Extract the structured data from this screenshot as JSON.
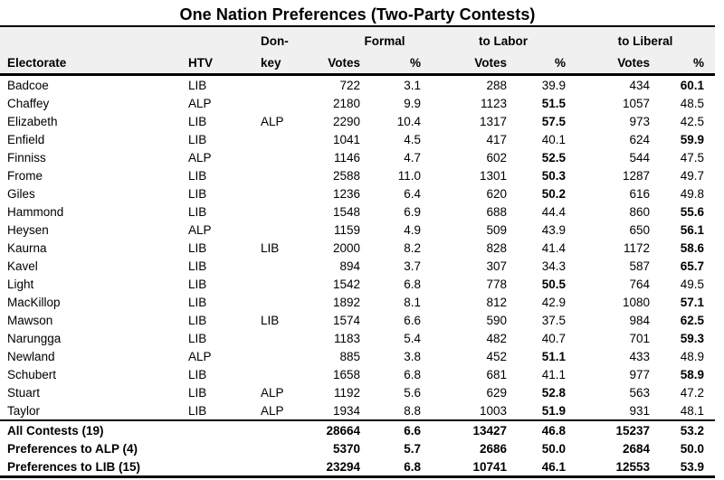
{
  "title": "One Nation Preferences (Two-Party Contests)",
  "columns": {
    "electorate": "Electorate",
    "htv": "HTV",
    "donkey_top": "Don-",
    "donkey_bottom": "key",
    "formal_group": "Formal",
    "labor_group": "to Labor",
    "liberal_group": "to Liberal",
    "votes": "Votes",
    "pct": "%"
  },
  "rows": [
    {
      "electorate": "Badcoe",
      "htv": "LIB",
      "donkey": "",
      "formal_votes": "722",
      "formal_pct": "3.1",
      "labor_votes": "288",
      "labor_pct": "39.9",
      "liberal_votes": "434",
      "liberal_pct": "60.1",
      "winner": "liberal"
    },
    {
      "electorate": "Chaffey",
      "htv": "ALP",
      "donkey": "",
      "formal_votes": "2180",
      "formal_pct": "9.9",
      "labor_votes": "1123",
      "labor_pct": "51.5",
      "liberal_votes": "1057",
      "liberal_pct": "48.5",
      "winner": "labor"
    },
    {
      "electorate": "Elizabeth",
      "htv": "LIB",
      "donkey": "ALP",
      "formal_votes": "2290",
      "formal_pct": "10.4",
      "labor_votes": "1317",
      "labor_pct": "57.5",
      "liberal_votes": "973",
      "liberal_pct": "42.5",
      "winner": "labor"
    },
    {
      "electorate": "Enfield",
      "htv": "LIB",
      "donkey": "",
      "formal_votes": "1041",
      "formal_pct": "4.5",
      "labor_votes": "417",
      "labor_pct": "40.1",
      "liberal_votes": "624",
      "liberal_pct": "59.9",
      "winner": "liberal"
    },
    {
      "electorate": "Finniss",
      "htv": "ALP",
      "donkey": "",
      "formal_votes": "1146",
      "formal_pct": "4.7",
      "labor_votes": "602",
      "labor_pct": "52.5",
      "liberal_votes": "544",
      "liberal_pct": "47.5",
      "winner": "labor"
    },
    {
      "electorate": "Frome",
      "htv": "LIB",
      "donkey": "",
      "formal_votes": "2588",
      "formal_pct": "11.0",
      "labor_votes": "1301",
      "labor_pct": "50.3",
      "liberal_votes": "1287",
      "liberal_pct": "49.7",
      "winner": "labor"
    },
    {
      "electorate": "Giles",
      "htv": "LIB",
      "donkey": "",
      "formal_votes": "1236",
      "formal_pct": "6.4",
      "labor_votes": "620",
      "labor_pct": "50.2",
      "liberal_votes": "616",
      "liberal_pct": "49.8",
      "winner": "labor"
    },
    {
      "electorate": "Hammond",
      "htv": "LIB",
      "donkey": "",
      "formal_votes": "1548",
      "formal_pct": "6.9",
      "labor_votes": "688",
      "labor_pct": "44.4",
      "liberal_votes": "860",
      "liberal_pct": "55.6",
      "winner": "liberal"
    },
    {
      "electorate": "Heysen",
      "htv": "ALP",
      "donkey": "",
      "formal_votes": "1159",
      "formal_pct": "4.9",
      "labor_votes": "509",
      "labor_pct": "43.9",
      "liberal_votes": "650",
      "liberal_pct": "56.1",
      "winner": "liberal"
    },
    {
      "electorate": "Kaurna",
      "htv": "LIB",
      "donkey": "LIB",
      "formal_votes": "2000",
      "formal_pct": "8.2",
      "labor_votes": "828",
      "labor_pct": "41.4",
      "liberal_votes": "1172",
      "liberal_pct": "58.6",
      "winner": "liberal"
    },
    {
      "electorate": "Kavel",
      "htv": "LIB",
      "donkey": "",
      "formal_votes": "894",
      "formal_pct": "3.7",
      "labor_votes": "307",
      "labor_pct": "34.3",
      "liberal_votes": "587",
      "liberal_pct": "65.7",
      "winner": "liberal"
    },
    {
      "electorate": "Light",
      "htv": "LIB",
      "donkey": "",
      "formal_votes": "1542",
      "formal_pct": "6.8",
      "labor_votes": "778",
      "labor_pct": "50.5",
      "liberal_votes": "764",
      "liberal_pct": "49.5",
      "winner": "labor"
    },
    {
      "electorate": "MacKillop",
      "htv": "LIB",
      "donkey": "",
      "formal_votes": "1892",
      "formal_pct": "8.1",
      "labor_votes": "812",
      "labor_pct": "42.9",
      "liberal_votes": "1080",
      "liberal_pct": "57.1",
      "winner": "liberal"
    },
    {
      "electorate": "Mawson",
      "htv": "LIB",
      "donkey": "LIB",
      "formal_votes": "1574",
      "formal_pct": "6.6",
      "labor_votes": "590",
      "labor_pct": "37.5",
      "liberal_votes": "984",
      "liberal_pct": "62.5",
      "winner": "liberal"
    },
    {
      "electorate": "Narungga",
      "htv": "LIB",
      "donkey": "",
      "formal_votes": "1183",
      "formal_pct": "5.4",
      "labor_votes": "482",
      "labor_pct": "40.7",
      "liberal_votes": "701",
      "liberal_pct": "59.3",
      "winner": "liberal"
    },
    {
      "electorate": "Newland",
      "htv": "ALP",
      "donkey": "",
      "formal_votes": "885",
      "formal_pct": "3.8",
      "labor_votes": "452",
      "labor_pct": "51.1",
      "liberal_votes": "433",
      "liberal_pct": "48.9",
      "winner": "labor"
    },
    {
      "electorate": "Schubert",
      "htv": "LIB",
      "donkey": "",
      "formal_votes": "1658",
      "formal_pct": "6.8",
      "labor_votes": "681",
      "labor_pct": "41.1",
      "liberal_votes": "977",
      "liberal_pct": "58.9",
      "winner": "liberal"
    },
    {
      "electorate": "Stuart",
      "htv": "LIB",
      "donkey": "ALP",
      "formal_votes": "1192",
      "formal_pct": "5.6",
      "labor_votes": "629",
      "labor_pct": "52.8",
      "liberal_votes": "563",
      "liberal_pct": "47.2",
      "winner": "labor"
    },
    {
      "electorate": "Taylor",
      "htv": "LIB",
      "donkey": "ALP",
      "formal_votes": "1934",
      "formal_pct": "8.8",
      "labor_votes": "1003",
      "labor_pct": "51.9",
      "liberal_votes": "931",
      "liberal_pct": "48.1",
      "winner": "labor"
    }
  ],
  "totals": [
    {
      "label": "All Contests (19)",
      "formal_votes": "28664",
      "formal_pct": "6.6",
      "labor_votes": "13427",
      "labor_pct": "46.8",
      "liberal_votes": "15237",
      "liberal_pct": "53.2"
    },
    {
      "label": "Preferences to ALP (4)",
      "formal_votes": "5370",
      "formal_pct": "5.7",
      "labor_votes": "2686",
      "labor_pct": "50.0",
      "liberal_votes": "2684",
      "liberal_pct": "50.0"
    },
    {
      "label": "Preferences to LIB (15)",
      "formal_votes": "23294",
      "formal_pct": "6.8",
      "labor_votes": "10741",
      "labor_pct": "46.1",
      "liberal_votes": "12553",
      "liberal_pct": "53.9"
    }
  ],
  "colors": {
    "page_bg": "#ffffff",
    "header_bg": "#f0f0f0",
    "border": "#000000",
    "text": "#000000"
  }
}
